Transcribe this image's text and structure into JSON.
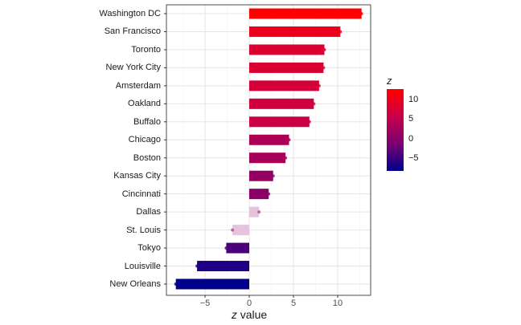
{
  "chart_data": {
    "type": "bar",
    "orientation": "horizontal",
    "title": "",
    "xlabel": "z value",
    "ylabel": "",
    "xlim": [
      -9,
      13.5
    ],
    "xticks": [
      -5,
      0,
      5,
      10
    ],
    "xtick_labels": [
      "−5",
      "0",
      "5",
      "10"
    ],
    "grid": true,
    "categories": [
      "Washington DC",
      "San Francisco",
      "Toronto",
      "New York City",
      "Amsterdam",
      "Oakland",
      "Buffalo",
      "Chicago",
      "Boston",
      "Kansas City",
      "Cincinnati",
      "Dallas",
      "St. Louis",
      "Tokyo",
      "Louisville",
      "New Orleans"
    ],
    "values": [
      12.7,
      10.3,
      8.5,
      8.4,
      7.9,
      7.3,
      6.8,
      4.5,
      4.1,
      2.7,
      2.2,
      1.1,
      -1.9,
      -2.6,
      -5.9,
      -8.3
    ],
    "faded": [
      false,
      false,
      false,
      false,
      false,
      false,
      false,
      false,
      false,
      false,
      false,
      true,
      true,
      false,
      false,
      false
    ],
    "legend": {
      "title": "z",
      "type": "colorbar",
      "position": "right",
      "ticks": [
        10,
        5,
        0,
        -5
      ],
      "tick_labels": [
        "10",
        "5",
        "0",
        "−5"
      ],
      "range": [
        -8.3,
        12.7
      ],
      "colors": {
        "high": "#ff0000",
        "mid": "#9a0060",
        "low": "#00008b"
      }
    }
  },
  "axis": {
    "x_title": "z value",
    "x_ticks": [
      "−5",
      "0",
      "5",
      "10"
    ]
  },
  "legend": {
    "title": "z",
    "labels": [
      "10",
      "5",
      "0",
      "−5"
    ]
  }
}
